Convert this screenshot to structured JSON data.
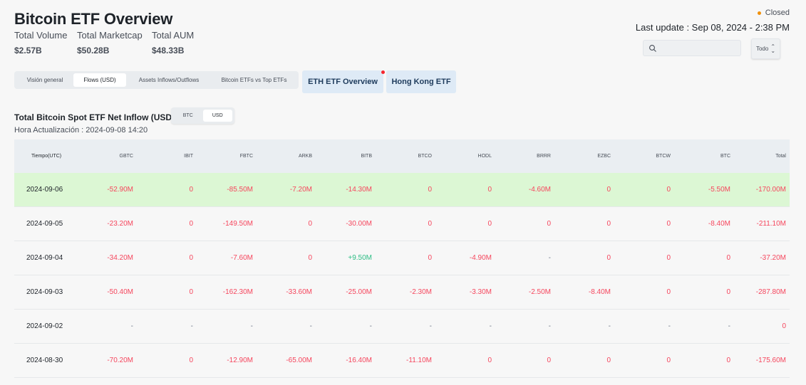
{
  "header": {
    "title": "Bitcoin ETF Overview",
    "stats": [
      {
        "label": "Total Volume",
        "value": "$2.57B"
      },
      {
        "label": "Total Marketcap",
        "value": "$50.28B"
      },
      {
        "label": "Total AUM",
        "value": "$48.33B"
      }
    ],
    "status": "Closed",
    "last_update": "Last update : Sep 08, 2024 - 2:38 PM"
  },
  "search": {
    "placeholder": ""
  },
  "select": {
    "value": "Todo"
  },
  "tabs": [
    "Visión general",
    "Flows (USD)",
    "Assets Inflows/Outflows",
    "Bitcoin ETFs vs Top ETFs"
  ],
  "links": {
    "eth": "ETH ETF Overview",
    "hk": "Hong Kong ETF"
  },
  "section": {
    "title": "Total Bitcoin Spot ETF Net Inflow (USD)",
    "subtitle": "Hora Actualización : 2024-09-08 14:20",
    "toggle": [
      "BTC",
      "USD"
    ]
  },
  "colors": {
    "negative": "#f6465d",
    "positive": "#2ebd85",
    "highlight": "#dcf7d4"
  },
  "table": {
    "headers": [
      "Tiempo(UTC)",
      "GBTC",
      "IBIT",
      "FBTC",
      "ARKB",
      "BITB",
      "BTCO",
      "HODL",
      "BRRR",
      "EZBC",
      "BTCW",
      "BTC",
      "Total"
    ],
    "rows": [
      [
        "2024-09-06",
        "-52.90M",
        "0",
        "-85.50M",
        "-7.20M",
        "-14.30M",
        "0",
        "0",
        "-4.60M",
        "0",
        "0",
        "-5.50M",
        "-170.00M"
      ],
      [
        "2024-09-05",
        "-23.20M",
        "0",
        "-149.50M",
        "0",
        "-30.00M",
        "0",
        "0",
        "0",
        "0",
        "0",
        "-8.40M",
        "-211.10M"
      ],
      [
        "2024-09-04",
        "-34.20M",
        "0",
        "-7.60M",
        "0",
        "+9.50M",
        "0",
        "-4.90M",
        "-",
        "0",
        "0",
        "0",
        "-37.20M"
      ],
      [
        "2024-09-03",
        "-50.40M",
        "0",
        "-162.30M",
        "-33.60M",
        "-25.00M",
        "-2.30M",
        "-3.30M",
        "-2.50M",
        "-8.40M",
        "0",
        "0",
        "-287.80M"
      ],
      [
        "2024-09-02",
        "-",
        "-",
        "-",
        "-",
        "-",
        "-",
        "-",
        "-",
        "-",
        "-",
        "-",
        "0"
      ],
      [
        "2024-08-30",
        "-70.20M",
        "0",
        "-12.90M",
        "-65.00M",
        "-16.40M",
        "-11.10M",
        "0",
        "0",
        "0",
        "0",
        "0",
        "-175.60M"
      ]
    ]
  }
}
